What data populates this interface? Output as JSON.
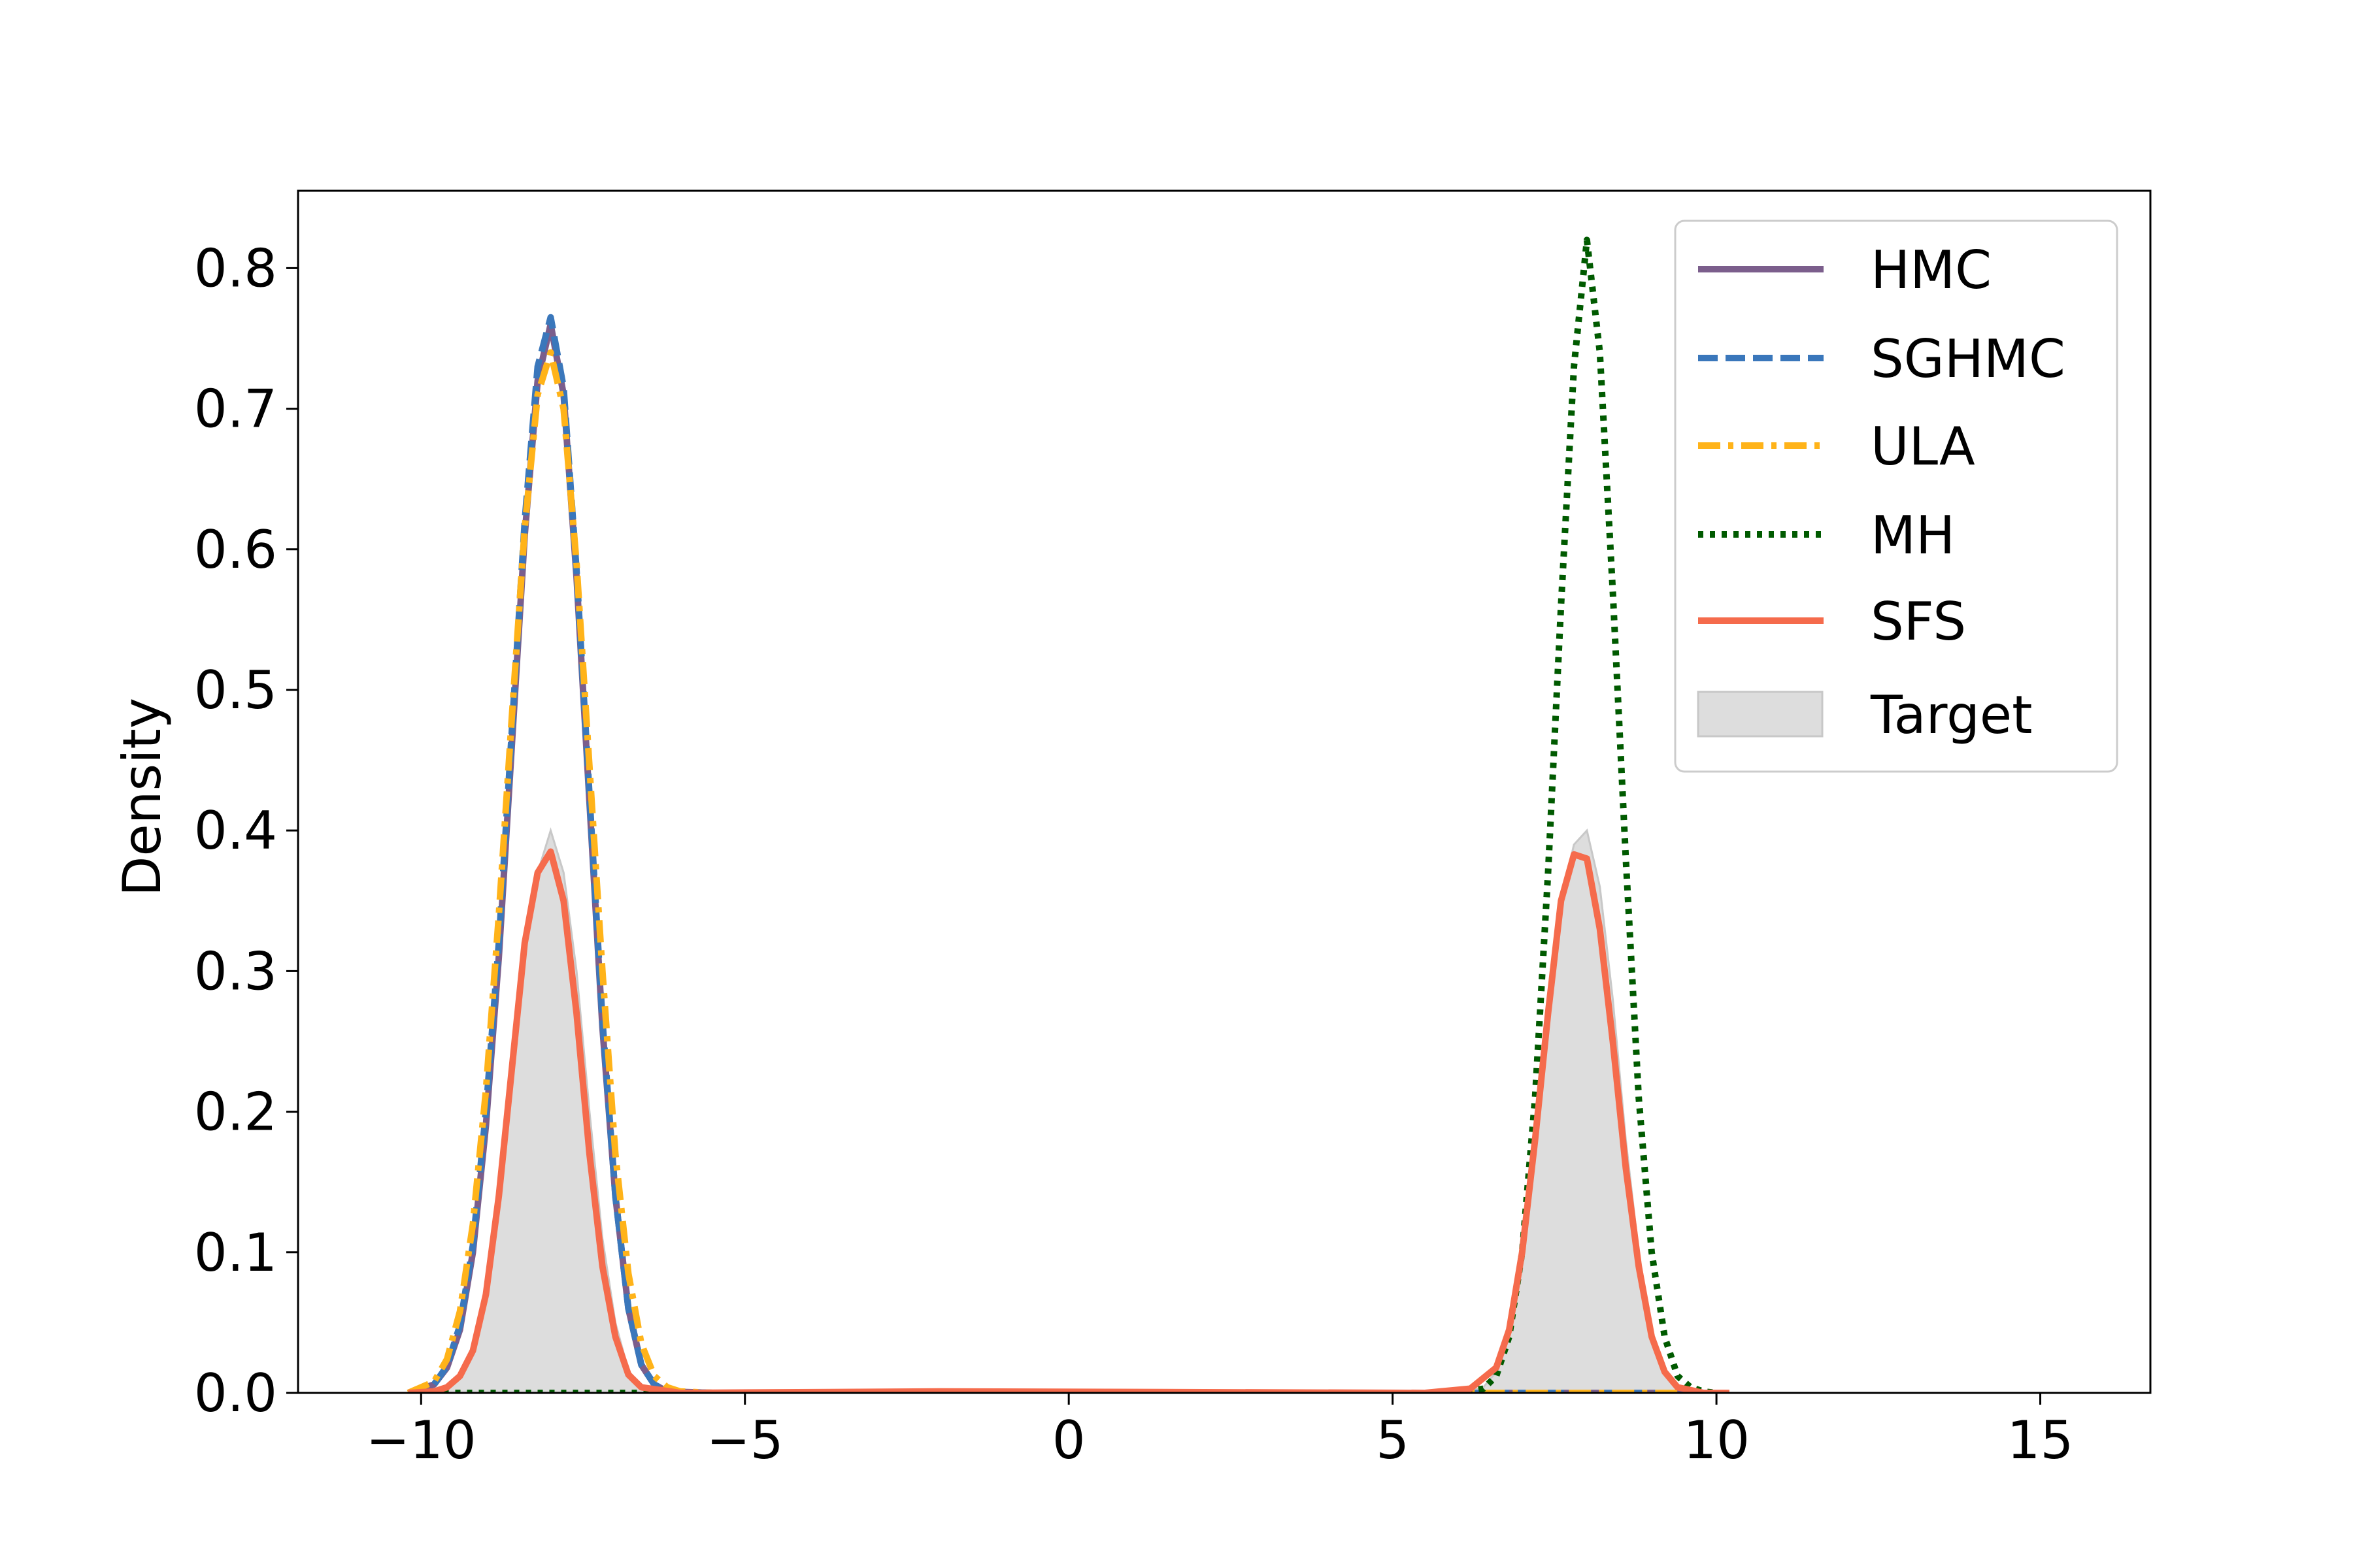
{
  "chart_data": {
    "type": "line",
    "title": "",
    "xlabel": "",
    "ylabel": "Density",
    "xlim": [
      -11.9,
      16.7
    ],
    "ylim": [
      0,
      0.855
    ],
    "xticks": [
      -10,
      -5,
      0,
      5,
      10,
      15
    ],
    "xtick_labels": [
      "−10",
      "−5",
      "0",
      "5",
      "10",
      "15"
    ],
    "yticks": [
      0.0,
      0.1,
      0.2,
      0.3,
      0.4,
      0.5,
      0.6,
      0.7,
      0.8
    ],
    "ytick_labels": [
      "0.0",
      "0.1",
      "0.2",
      "0.3",
      "0.4",
      "0.5",
      "0.6",
      "0.7",
      "0.8"
    ],
    "grid": false,
    "legend_position": "top-right",
    "series": [
      {
        "name": "HMC",
        "color": "#7b5e8c",
        "style": "solid",
        "x": [
          -10.2,
          -9.8,
          -9.6,
          -9.4,
          -9.2,
          -9.0,
          -8.8,
          -8.6,
          -8.4,
          -8.2,
          -8.0,
          -7.8,
          -7.6,
          -7.4,
          -7.2,
          -7.0,
          -6.8,
          -6.6,
          -6.4,
          -6.2,
          -5.5,
          10.0
        ],
        "y": [
          0.0,
          0.006,
          0.018,
          0.045,
          0.1,
          0.19,
          0.31,
          0.46,
          0.61,
          0.72,
          0.76,
          0.71,
          0.58,
          0.42,
          0.26,
          0.14,
          0.06,
          0.02,
          0.006,
          0.001,
          0.0,
          0.0
        ]
      },
      {
        "name": "SGHMC",
        "color": "#3a77bb",
        "style": "dashed",
        "x": [
          -10.2,
          -9.8,
          -9.6,
          -9.4,
          -9.2,
          -9.0,
          -8.8,
          -8.6,
          -8.4,
          -8.2,
          -8.0,
          -7.8,
          -7.6,
          -7.4,
          -7.2,
          -7.0,
          -6.8,
          -6.6,
          -6.4,
          -6.2,
          -5.5,
          10.0
        ],
        "y": [
          0.0,
          0.006,
          0.019,
          0.048,
          0.105,
          0.2,
          0.32,
          0.47,
          0.62,
          0.73,
          0.765,
          0.715,
          0.585,
          0.425,
          0.265,
          0.14,
          0.06,
          0.02,
          0.006,
          0.001,
          0.0,
          0.0
        ]
      },
      {
        "name": "ULA",
        "color": "#ffb319",
        "style": "dashdot",
        "x": [
          -10.2,
          -9.8,
          -9.6,
          -9.4,
          -9.2,
          -9.0,
          -8.8,
          -8.6,
          -8.4,
          -8.2,
          -8.0,
          -7.8,
          -7.6,
          -7.4,
          -7.2,
          -7.0,
          -6.8,
          -6.6,
          -6.4,
          -6.2,
          -6.0,
          -5.5,
          10.0
        ],
        "y": [
          0.0,
          0.008,
          0.024,
          0.058,
          0.12,
          0.215,
          0.34,
          0.48,
          0.615,
          0.71,
          0.74,
          0.7,
          0.59,
          0.445,
          0.3,
          0.17,
          0.085,
          0.035,
          0.012,
          0.004,
          0.001,
          0.0,
          0.0
        ]
      },
      {
        "name": "MH",
        "color": "#005a00",
        "style": "dotted",
        "x": [
          -10.2,
          6.0,
          6.4,
          6.6,
          6.8,
          7.0,
          7.2,
          7.4,
          7.6,
          7.8,
          8.0,
          8.2,
          8.4,
          8.6,
          8.8,
          9.0,
          9.2,
          9.4,
          9.6,
          9.8,
          10.0
        ],
        "y": [
          0.0,
          0.0,
          0.003,
          0.012,
          0.04,
          0.1,
          0.21,
          0.37,
          0.56,
          0.73,
          0.82,
          0.74,
          0.57,
          0.38,
          0.21,
          0.1,
          0.04,
          0.012,
          0.004,
          0.001,
          0.0
        ]
      },
      {
        "name": "SFS",
        "color": "#f56b4c",
        "style": "solid",
        "x": [
          -10.2,
          -9.8,
          -9.6,
          -9.4,
          -9.2,
          -9.0,
          -8.8,
          -8.6,
          -8.4,
          -8.2,
          -8.0,
          -7.8,
          -7.6,
          -7.4,
          -7.2,
          -7.0,
          -6.8,
          -6.6,
          -6.0,
          -2.0,
          5.5,
          6.2,
          6.6,
          6.8,
          7.0,
          7.2,
          7.4,
          7.6,
          7.8,
          8.0,
          8.2,
          8.4,
          8.6,
          8.8,
          9.0,
          9.2,
          9.4,
          9.8,
          10.2
        ],
        "y": [
          0.0,
          0.001,
          0.004,
          0.012,
          0.03,
          0.07,
          0.14,
          0.23,
          0.32,
          0.37,
          0.385,
          0.35,
          0.27,
          0.17,
          0.09,
          0.04,
          0.013,
          0.004,
          0.0,
          0.001,
          0.0,
          0.003,
          0.018,
          0.045,
          0.1,
          0.18,
          0.27,
          0.35,
          0.383,
          0.38,
          0.33,
          0.25,
          0.16,
          0.09,
          0.04,
          0.015,
          0.004,
          0.0,
          0.0
        ]
      },
      {
        "name": "Target",
        "color": "#dddddd",
        "style": "fill",
        "x": [
          -10.2,
          -9.6,
          -9.4,
          -9.2,
          -9.0,
          -8.8,
          -8.6,
          -8.4,
          -8.2,
          -8.0,
          -7.8,
          -7.6,
          -7.4,
          -7.2,
          -7.0,
          -6.8,
          -6.6,
          -6.2,
          6.0,
          6.4,
          6.6,
          6.8,
          7.0,
          7.2,
          7.4,
          7.6,
          7.8,
          8.0,
          8.2,
          8.4,
          8.6,
          8.8,
          9.0,
          9.2,
          9.4,
          9.8,
          10.2
        ],
        "y": [
          0.0,
          0.003,
          0.01,
          0.028,
          0.065,
          0.13,
          0.22,
          0.31,
          0.37,
          0.4,
          0.37,
          0.3,
          0.2,
          0.11,
          0.05,
          0.016,
          0.004,
          0.0,
          0.0,
          0.004,
          0.015,
          0.045,
          0.1,
          0.18,
          0.27,
          0.35,
          0.39,
          0.4,
          0.36,
          0.28,
          0.18,
          0.1,
          0.045,
          0.015,
          0.004,
          0.0,
          0.0
        ]
      }
    ]
  }
}
